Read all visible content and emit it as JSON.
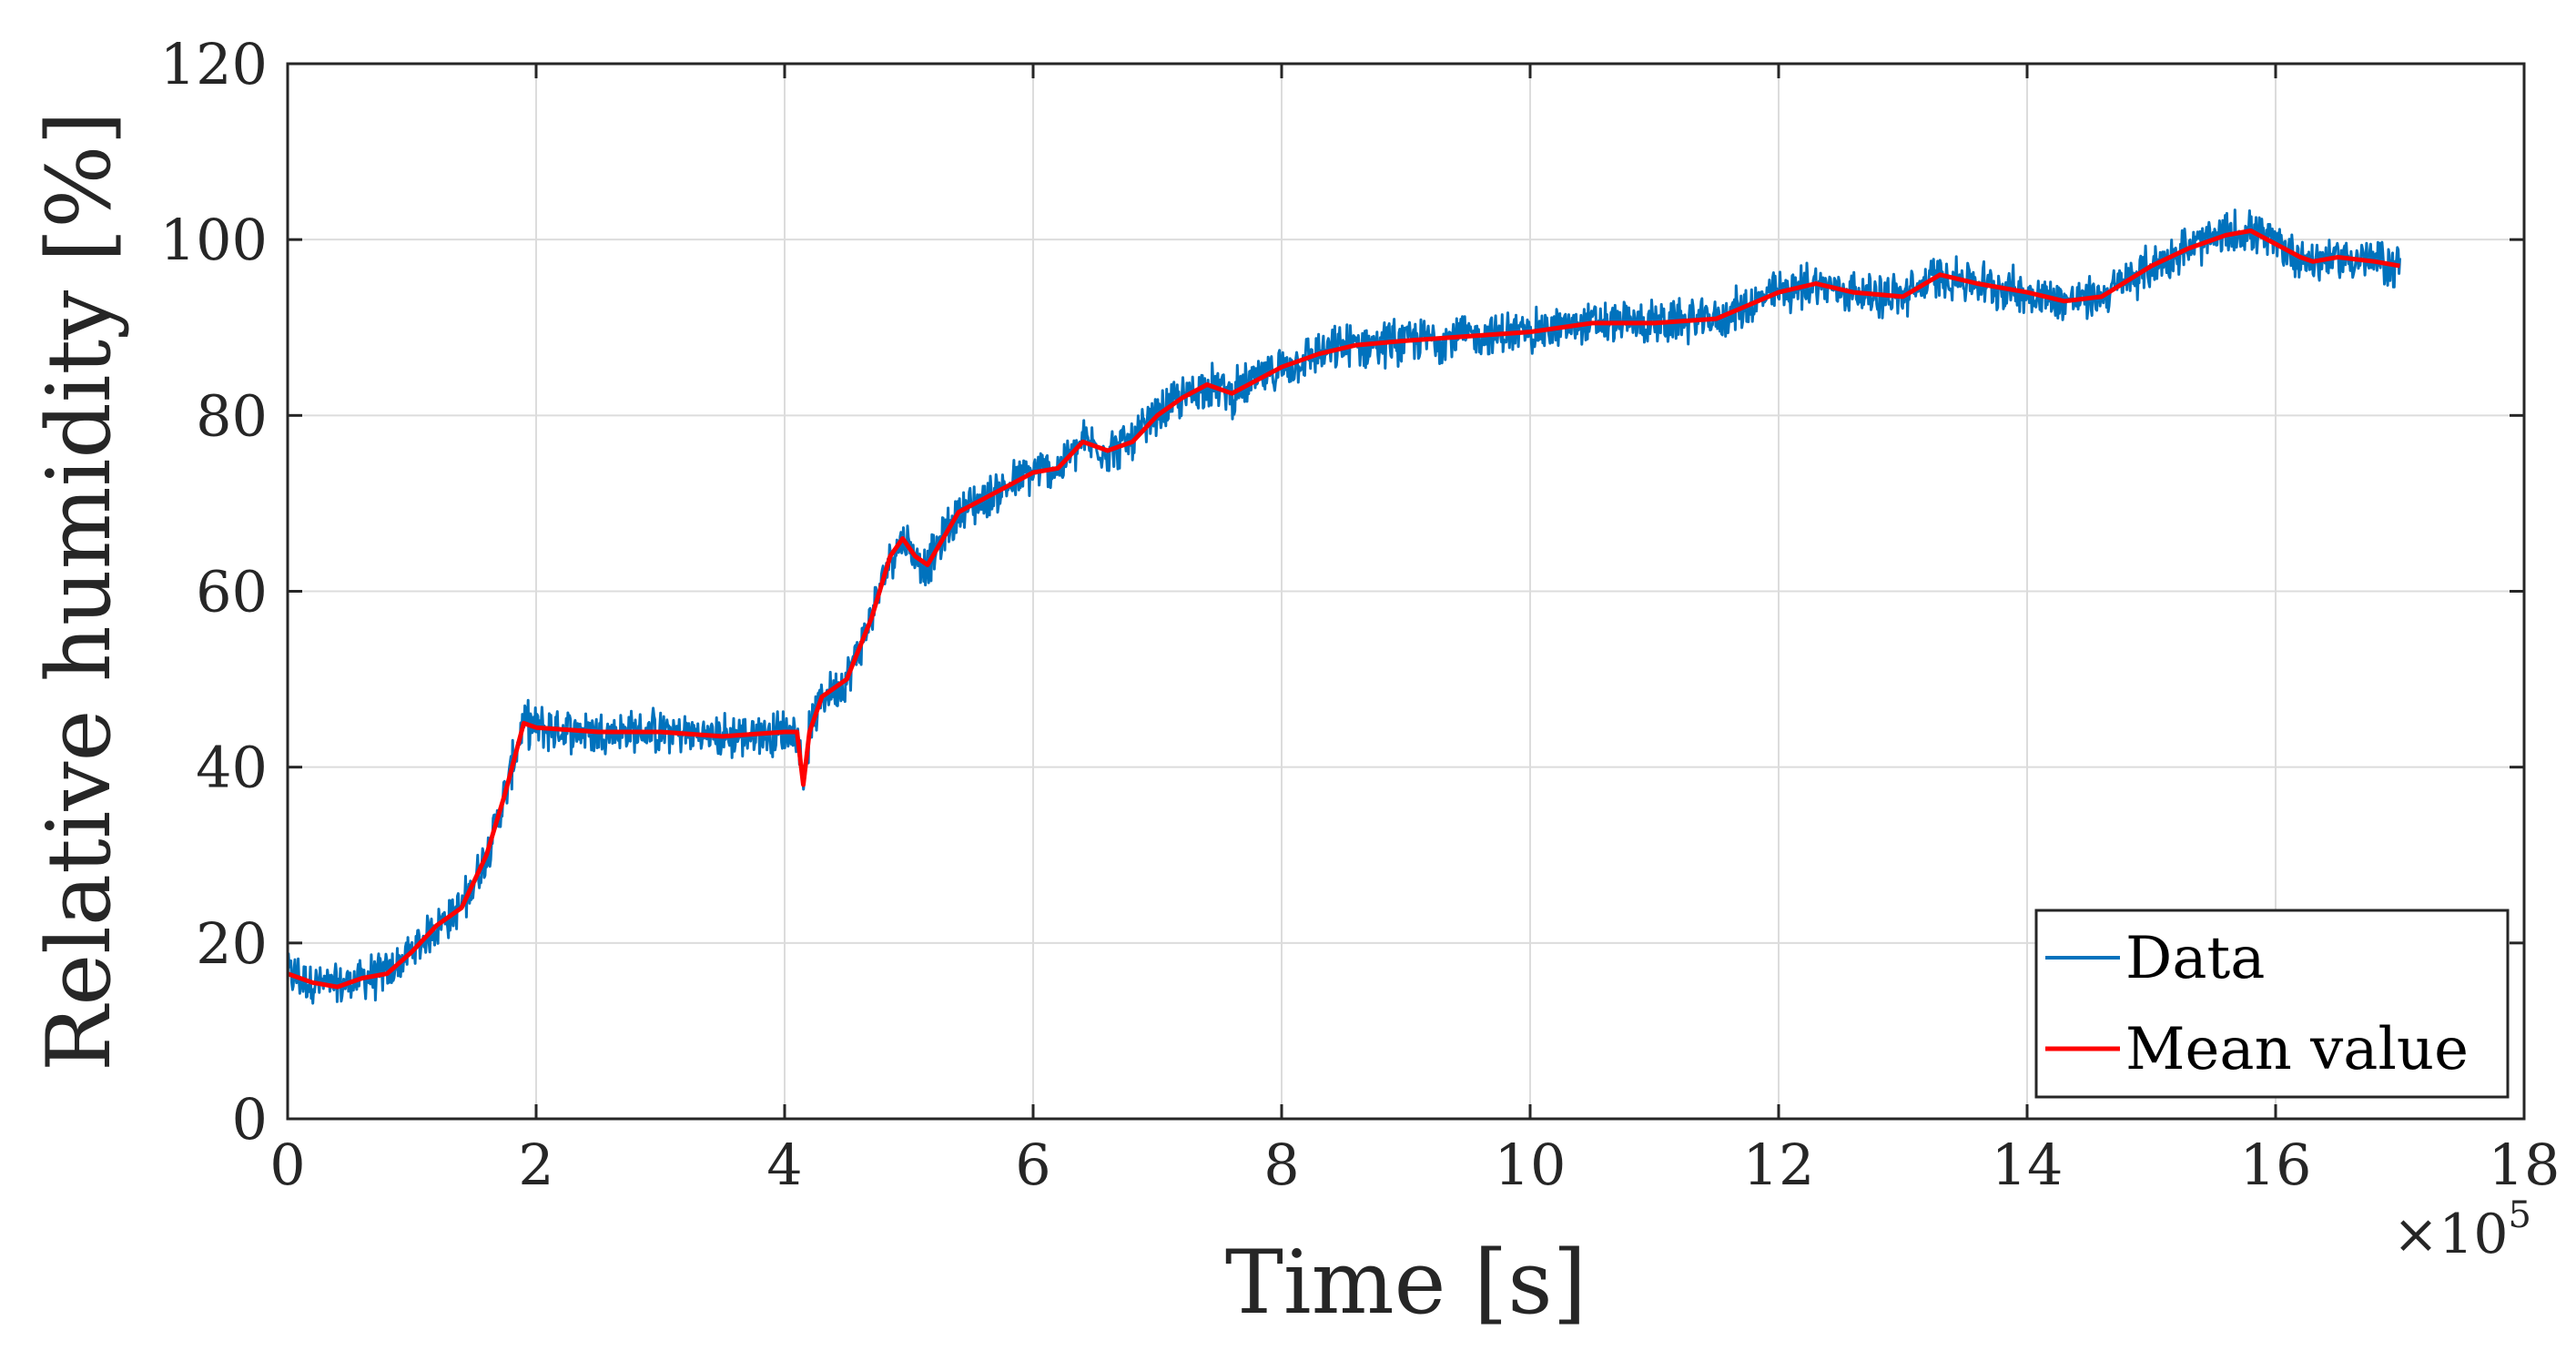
{
  "chart_data": {
    "type": "line",
    "xlabel": "Time [s]",
    "ylabel": "Relative humidity [%]",
    "x_multiplier": {
      "base": "×10",
      "exponent": "5"
    },
    "xlim": [
      0,
      18
    ],
    "ylim": [
      0,
      120
    ],
    "xticks": [
      "0",
      "2",
      "4",
      "6",
      "8",
      "10",
      "12",
      "14",
      "16",
      "18"
    ],
    "yticks": [
      "0",
      "20",
      "40",
      "60",
      "80",
      "100",
      "120"
    ],
    "grid": true,
    "legend_position": "bottom-right",
    "series": [
      {
        "name": "Data",
        "color": "#0072BD",
        "noise_amplitude": 2.5,
        "x": [
          0,
          0.2,
          0.4,
          0.6,
          0.8,
          1.0,
          1.2,
          1.4,
          1.6,
          1.75,
          1.9,
          2.0,
          2.5,
          3.0,
          3.5,
          4.0,
          4.1,
          4.15,
          4.2,
          4.3,
          4.5,
          4.7,
          4.85,
          4.95,
          5.05,
          5.15,
          5.4,
          5.8,
          6.0,
          6.2,
          6.4,
          6.6,
          6.8,
          7.0,
          7.2,
          7.4,
          7.6,
          7.8,
          8.0,
          8.3,
          8.6,
          9.0,
          9.5,
          10.0,
          10.5,
          11.0,
          11.5,
          12.0,
          12.3,
          12.6,
          13.0,
          13.3,
          13.6,
          14.0,
          14.3,
          14.6,
          15.0,
          15.3,
          15.6,
          15.8,
          16.0,
          16.2,
          16.3,
          16.5,
          16.8,
          17.0
        ],
        "y": [
          16.5,
          15.5,
          15.0,
          16.0,
          16.5,
          19.0,
          22.0,
          24.0,
          30.0,
          37.0,
          45.0,
          44.5,
          44.0,
          44.0,
          43.5,
          44.0,
          44.0,
          38.0,
          44.0,
          48.0,
          50.0,
          57.0,
          64.0,
          66.0,
          64.0,
          63.0,
          69.0,
          72.0,
          73.5,
          74.0,
          77.0,
          76.0,
          77.0,
          80.0,
          82.0,
          83.5,
          82.5,
          84.0,
          85.5,
          87.0,
          88.0,
          88.5,
          89.0,
          89.5,
          90.5,
          90.5,
          91.0,
          94.0,
          95.0,
          94.0,
          93.5,
          96.0,
          95.0,
          94.0,
          93.0,
          93.5,
          97.0,
          99.0,
          100.5,
          101.0,
          99.5,
          98.0,
          97.5,
          98.0,
          97.5,
          97.0
        ]
      },
      {
        "name": "Mean value",
        "color": "#FF0000",
        "x": [
          0,
          0.2,
          0.4,
          0.6,
          0.8,
          1.0,
          1.2,
          1.4,
          1.6,
          1.75,
          1.9,
          2.0,
          2.5,
          3.0,
          3.5,
          4.0,
          4.1,
          4.15,
          4.2,
          4.3,
          4.5,
          4.7,
          4.85,
          4.95,
          5.05,
          5.15,
          5.4,
          5.8,
          6.0,
          6.2,
          6.4,
          6.6,
          6.8,
          7.0,
          7.2,
          7.4,
          7.6,
          7.8,
          8.0,
          8.3,
          8.6,
          9.0,
          9.5,
          10.0,
          10.5,
          11.0,
          11.5,
          12.0,
          12.3,
          12.6,
          13.0,
          13.3,
          13.6,
          14.0,
          14.3,
          14.6,
          15.0,
          15.3,
          15.6,
          15.8,
          16.0,
          16.2,
          16.3,
          16.5,
          16.8,
          17.0
        ],
        "y": [
          16.5,
          15.5,
          15.0,
          16.0,
          16.5,
          19.0,
          22.0,
          24.0,
          30.0,
          37.0,
          45.0,
          44.5,
          44.0,
          44.0,
          43.5,
          44.0,
          44.0,
          38.0,
          44.0,
          48.0,
          50.0,
          57.0,
          64.0,
          66.0,
          64.0,
          63.0,
          69.0,
          72.0,
          73.5,
          74.0,
          77.0,
          76.0,
          77.0,
          80.0,
          82.0,
          83.5,
          82.5,
          84.0,
          85.5,
          87.0,
          88.0,
          88.5,
          89.0,
          89.5,
          90.5,
          90.5,
          91.0,
          94.0,
          95.0,
          94.0,
          93.5,
          96.0,
          95.0,
          94.0,
          93.0,
          93.5,
          97.0,
          99.0,
          100.5,
          101.0,
          99.5,
          98.0,
          97.5,
          98.0,
          97.5,
          97.0
        ]
      }
    ]
  }
}
